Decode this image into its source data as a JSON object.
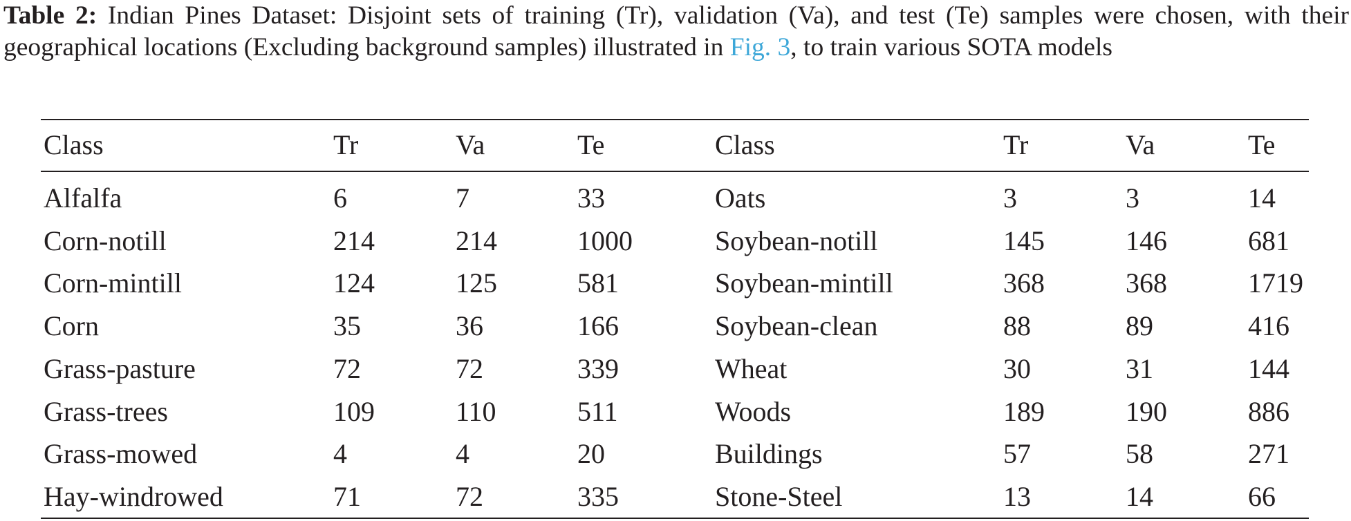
{
  "caption": {
    "label": "Table 2:",
    "text_before_link": " Indian Pines Dataset: Disjoint sets of training (Tr), validation (Va), and test (Te) samples were chosen, with their geographical locations (Excluding background samples) illustrated in ",
    "link": "Fig. 3",
    "text_after_link": ", to train various SOTA models"
  },
  "table": {
    "headers": [
      "Class",
      "Tr",
      "Va",
      "Te",
      "Class",
      "Tr",
      "Va",
      "Te"
    ],
    "rows": [
      [
        "Alfalfa",
        "6",
        "7",
        "33",
        "Oats",
        "3",
        "3",
        "14"
      ],
      [
        "Corn-notill",
        "214",
        "214",
        "1000",
        "Soybean-notill",
        "145",
        "146",
        "681"
      ],
      [
        "Corn-mintill",
        "124",
        "125",
        "581",
        "Soybean-mintill",
        "368",
        "368",
        "1719"
      ],
      [
        "Corn",
        "35",
        "36",
        "166",
        "Soybean-clean",
        "88",
        "89",
        "416"
      ],
      [
        "Grass-pasture",
        "72",
        "72",
        "339",
        "Wheat",
        "30",
        "31",
        "144"
      ],
      [
        "Grass-trees",
        "109",
        "110",
        "511",
        "Woods",
        "189",
        "190",
        "886"
      ],
      [
        "Grass-mowed",
        "4",
        "4",
        "20",
        "Buildings",
        "57",
        "58",
        "271"
      ],
      [
        "Hay-windrowed",
        "71",
        "72",
        "335",
        "Stone-Steel",
        "13",
        "14",
        "66"
      ]
    ]
  }
}
